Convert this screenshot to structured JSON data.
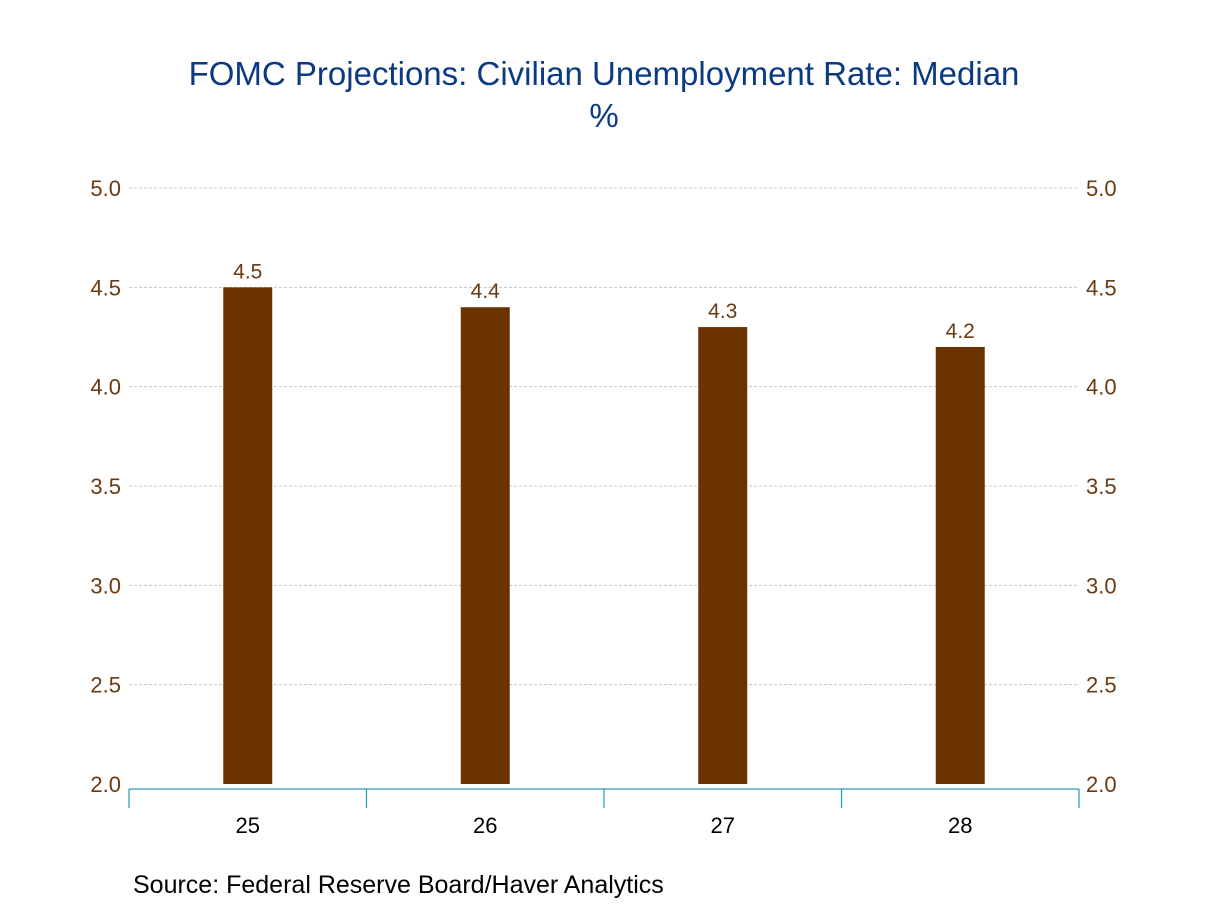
{
  "chart_data": {
    "type": "bar",
    "title": "FOMC Projections: Civilian Unemployment Rate: Median",
    "subtitle": "%",
    "categories": [
      "25",
      "26",
      "27",
      "28"
    ],
    "series": [
      {
        "name": "Civilian Unemployment Rate: Median",
        "values": [
          4.5,
          4.4,
          4.3,
          4.2
        ],
        "color": "#6b3300"
      }
    ],
    "data_labels": [
      "4.5",
      "4.4",
      "4.3",
      "4.2"
    ],
    "xlabel": "",
    "ylabel": "%",
    "ylim": [
      2.0,
      5.0
    ],
    "yticks": [
      2.0,
      2.5,
      3.0,
      3.5,
      4.0,
      4.5,
      5.0
    ],
    "ytick_labels": [
      "2.0",
      "2.5",
      "3.0",
      "3.5",
      "4.0",
      "4.5",
      "5.0"
    ],
    "y_axis_both_sides": true,
    "grid": true,
    "legend": "none",
    "source": "Source:  Federal Reserve Board/Haver Analytics",
    "colors": {
      "title": "#0b3a82",
      "bar": "#6b3300",
      "tick_label": "#6b3a10",
      "axis": "#2b9ab8",
      "grid": "#c8c8c8"
    }
  }
}
